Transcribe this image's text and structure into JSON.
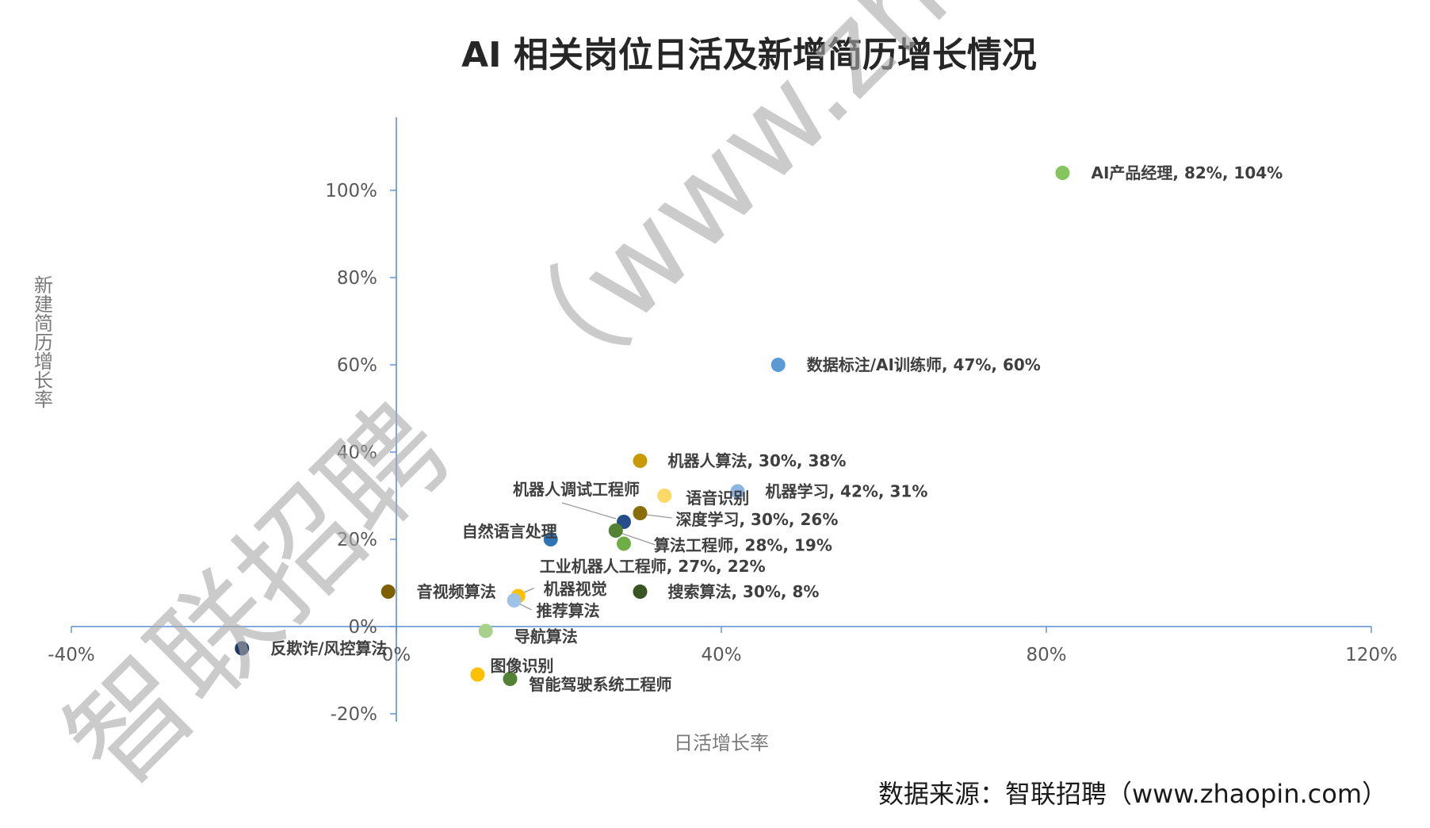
{
  "chart_data": {
    "type": "scatter",
    "title": "AI 相关岗位日活及新增简历增长情况",
    "xlabel": "日活增长率",
    "ylabel": "新建简历增长率",
    "xlim": [
      -40,
      120
    ],
    "ylim": [
      -20,
      120
    ],
    "x_ticks": [
      "-40%",
      "0%",
      "40%",
      "80%",
      "120%"
    ],
    "x_tick_values": [
      -40,
      0,
      40,
      80,
      120
    ],
    "y_ticks": [
      "-20%",
      "0%",
      "20%",
      "40%",
      "60%",
      "80%",
      "100%"
    ],
    "y_tick_values": [
      -20,
      0,
      20,
      40,
      60,
      80,
      100
    ],
    "grid": false,
    "points": [
      {
        "label": "AI产品经理, 82%, 104%",
        "x": 82,
        "y": 104,
        "color": "#86c45e"
      },
      {
        "label": "数据标注/AI训练师, 47%, 60%",
        "x": 47,
        "y": 60,
        "color": "#5b9bd5"
      },
      {
        "label": "机器人算法, 30%, 38%",
        "x": 30,
        "y": 38,
        "color": "#c99a06"
      },
      {
        "label": "机器学习, 42%, 31%",
        "x": 42,
        "y": 31,
        "color": "#8eb4e3"
      },
      {
        "label": "语音识别",
        "x": 33,
        "y": 30,
        "color": "#ffd966"
      },
      {
        "label": "机器人调试工程师",
        "x": 28,
        "y": 24,
        "color": "#264f8a"
      },
      {
        "label": "深度学习, 30%, 26%",
        "x": 30,
        "y": 26,
        "color": "#8a6d0b"
      },
      {
        "label": "自然语言处理",
        "x": 19,
        "y": 20,
        "color": "#2e75b6"
      },
      {
        "label": "算法工程师, 28%, 19%",
        "x": 28,
        "y": 19,
        "color": "#70ad47"
      },
      {
        "label": "工业机器人工程师, 27%, 22%",
        "x": 27,
        "y": 22,
        "color": "#548235"
      },
      {
        "label": "搜索算法, 30%, 8%",
        "x": 30,
        "y": 8,
        "color": "#375623"
      },
      {
        "label": "音视频算法",
        "x": -1,
        "y": 8,
        "color": "#7f6000"
      },
      {
        "label": "机器视觉",
        "x": 15,
        "y": 7,
        "color": "#ffc000"
      },
      {
        "label": "推荐算法",
        "x": 14.5,
        "y": 6,
        "color": "#9dc3e6"
      },
      {
        "label": "导航算法",
        "x": 11,
        "y": -1,
        "color": "#a9d18e"
      },
      {
        "label": "反欺诈/风控算法",
        "x": -19,
        "y": -5,
        "color": "#1f3864"
      },
      {
        "label": "图像识别",
        "x": 10,
        "y": -11,
        "color": "#ffc000"
      },
      {
        "label": "智能驾驶系统工程师",
        "x": 14,
        "y": -12,
        "color": "#548235"
      }
    ]
  },
  "source_note": "数据来源：智联招聘（www.zhaopin.com）",
  "watermark": {
    "brand": "智联招聘",
    "url_text": "（www.zhao"
  },
  "colors": {
    "axis": "#5b8fd6",
    "title": "#262626"
  }
}
